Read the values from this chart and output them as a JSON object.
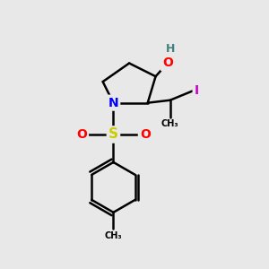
{
  "bg_color": "#e8e8e8",
  "atom_colors": {
    "N": "#0000ff",
    "O": "#ff0000",
    "S": "#cccc00",
    "I": "#cc00cc",
    "H": "#408080",
    "C": "#000000"
  },
  "bond_color": "#000000",
  "bond_width": 1.8,
  "fig_size": [
    3.0,
    3.0
  ],
  "dpi": 100,
  "xlim": [
    0,
    10
  ],
  "ylim": [
    0,
    10
  ]
}
